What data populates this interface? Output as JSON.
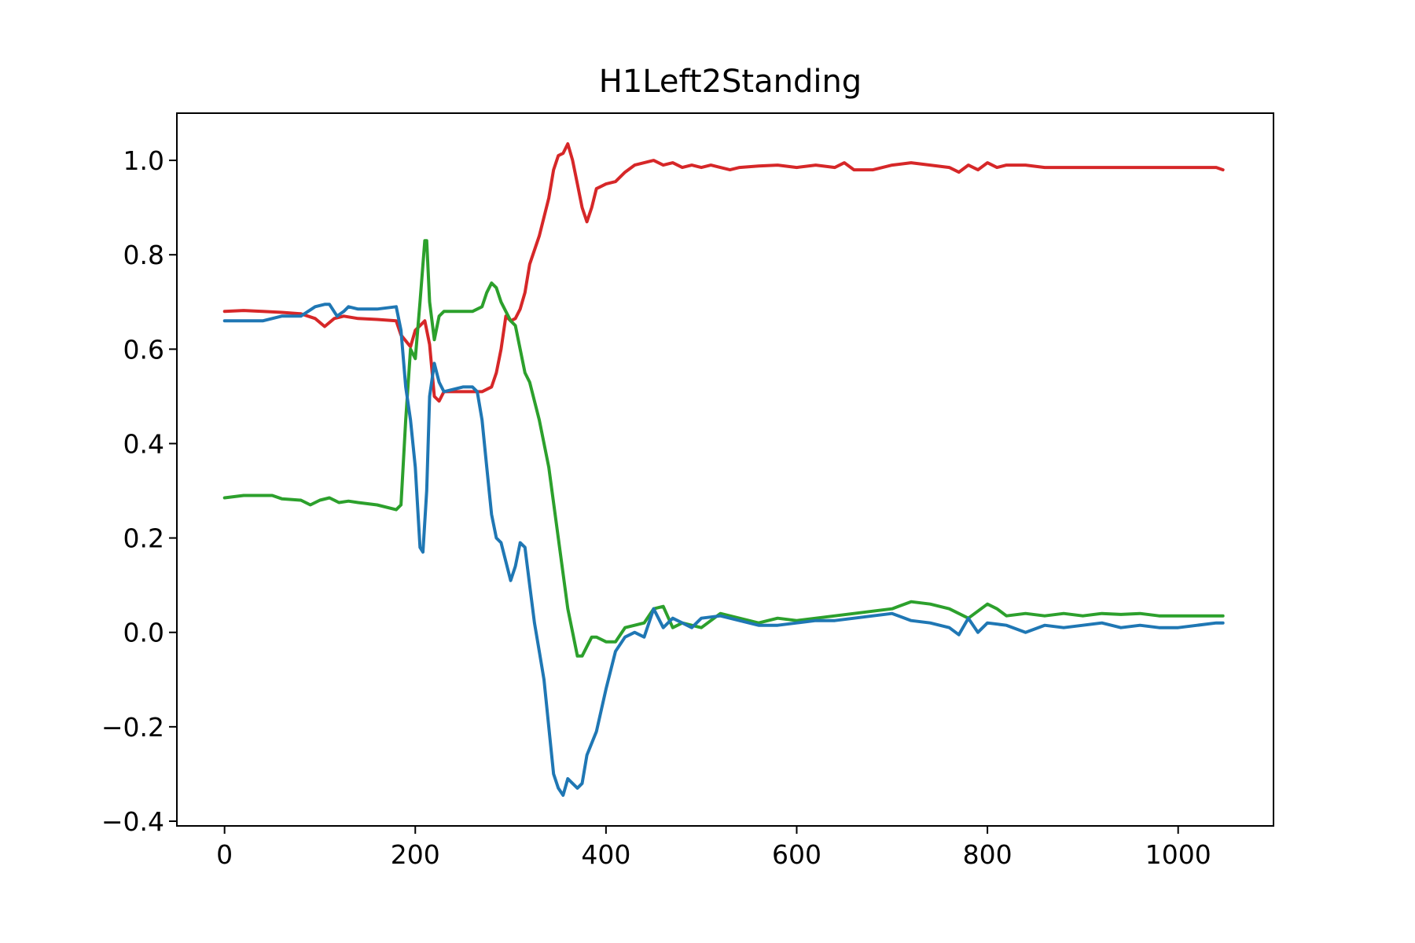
{
  "chart_data": {
    "type": "line",
    "title": "H1Left2Standing",
    "xlabel": "",
    "ylabel": "",
    "xlim": [
      -50,
      1100
    ],
    "ylim": [
      -0.41,
      1.1
    ],
    "grid": false,
    "legend": "none",
    "xticks": [
      0,
      200,
      400,
      600,
      800,
      1000
    ],
    "xtick_labels": [
      "0",
      "200",
      "400",
      "600",
      "800",
      "1000"
    ],
    "yticks": [
      -0.4,
      -0.2,
      0.0,
      0.2,
      0.4,
      0.6,
      0.8,
      1.0
    ],
    "ytick_labels": [
      "−0.4",
      "−0.2",
      "0.0",
      "0.2",
      "0.4",
      "0.6",
      "0.8",
      "1.0"
    ],
    "series": [
      {
        "color": "#d62728",
        "x": [
          0,
          20,
          40,
          60,
          80,
          95,
          105,
          115,
          125,
          140,
          160,
          180,
          185,
          195,
          200,
          210,
          215,
          220,
          225,
          230,
          240,
          250,
          260,
          270,
          275,
          280,
          285,
          290,
          295,
          300,
          305,
          310,
          315,
          320,
          330,
          340,
          345,
          350,
          355,
          360,
          365,
          370,
          375,
          380,
          385,
          390,
          400,
          410,
          420,
          430,
          440,
          450,
          460,
          470,
          480,
          490,
          500,
          510,
          520,
          530,
          540,
          560,
          580,
          600,
          620,
          640,
          650,
          660,
          680,
          700,
          720,
          740,
          760,
          770,
          780,
          790,
          800,
          810,
          820,
          840,
          860,
          880,
          900,
          920,
          940,
          960,
          980,
          1000,
          1020,
          1040,
          1047
        ],
        "y": [
          0.68,
          0.682,
          0.68,
          0.678,
          0.675,
          0.665,
          0.648,
          0.665,
          0.67,
          0.665,
          0.663,
          0.66,
          0.63,
          0.605,
          0.64,
          0.66,
          0.61,
          0.5,
          0.49,
          0.51,
          0.51,
          0.51,
          0.51,
          0.51,
          0.515,
          0.52,
          0.55,
          0.6,
          0.67,
          0.66,
          0.665,
          0.685,
          0.72,
          0.78,
          0.84,
          0.92,
          0.98,
          1.01,
          1.015,
          1.035,
          1.0,
          0.95,
          0.9,
          0.87,
          0.9,
          0.94,
          0.95,
          0.955,
          0.975,
          0.99,
          0.995,
          1.0,
          0.99,
          0.995,
          0.985,
          0.99,
          0.985,
          0.99,
          0.985,
          0.98,
          0.985,
          0.988,
          0.99,
          0.985,
          0.99,
          0.985,
          0.995,
          0.98,
          0.98,
          0.99,
          0.995,
          0.99,
          0.985,
          0.975,
          0.99,
          0.98,
          0.995,
          0.985,
          0.99,
          0.99,
          0.985,
          0.985,
          0.985,
          0.985,
          0.985,
          0.985,
          0.985,
          0.985,
          0.985,
          0.985,
          0.98
        ]
      },
      {
        "color": "#2ca02c",
        "x": [
          0,
          20,
          40,
          50,
          60,
          80,
          90,
          100,
          110,
          120,
          130,
          140,
          160,
          180,
          185,
          190,
          195,
          200,
          205,
          210,
          212,
          215,
          220,
          225,
          230,
          240,
          250,
          260,
          270,
          275,
          280,
          285,
          290,
          295,
          300,
          305,
          310,
          315,
          320,
          330,
          340,
          350,
          360,
          365,
          370,
          375,
          380,
          385,
          390,
          400,
          410,
          420,
          430,
          440,
          450,
          460,
          470,
          480,
          490,
          500,
          520,
          540,
          560,
          580,
          600,
          620,
          640,
          660,
          680,
          700,
          720,
          740,
          760,
          780,
          800,
          810,
          820,
          840,
          860,
          880,
          900,
          920,
          940,
          960,
          980,
          1000,
          1020,
          1040,
          1047
        ],
        "y": [
          0.285,
          0.29,
          0.29,
          0.29,
          0.283,
          0.28,
          0.27,
          0.28,
          0.285,
          0.275,
          0.278,
          0.275,
          0.27,
          0.26,
          0.27,
          0.45,
          0.6,
          0.58,
          0.7,
          0.83,
          0.83,
          0.7,
          0.62,
          0.67,
          0.68,
          0.68,
          0.68,
          0.68,
          0.69,
          0.72,
          0.74,
          0.73,
          0.7,
          0.68,
          0.66,
          0.65,
          0.6,
          0.55,
          0.53,
          0.45,
          0.35,
          0.2,
          0.05,
          0.0,
          -0.05,
          -0.05,
          -0.03,
          -0.01,
          -0.01,
          -0.02,
          -0.02,
          0.01,
          0.015,
          0.02,
          0.05,
          0.055,
          0.01,
          0.02,
          0.015,
          0.01,
          0.04,
          0.03,
          0.02,
          0.03,
          0.025,
          0.03,
          0.035,
          0.04,
          0.045,
          0.05,
          0.065,
          0.06,
          0.05,
          0.03,
          0.06,
          0.05,
          0.035,
          0.04,
          0.035,
          0.04,
          0.035,
          0.04,
          0.038,
          0.04,
          0.035,
          0.035,
          0.035,
          0.035,
          0.035
        ]
      },
      {
        "color": "#1f77b4",
        "x": [
          0,
          20,
          40,
          60,
          80,
          95,
          105,
          110,
          118,
          125,
          130,
          140,
          160,
          180,
          185,
          190,
          195,
          200,
          205,
          208,
          212,
          215,
          220,
          225,
          230,
          240,
          250,
          260,
          265,
          270,
          275,
          280,
          285,
          290,
          295,
          300,
          305,
          310,
          315,
          320,
          325,
          330,
          335,
          340,
          345,
          350,
          355,
          360,
          365,
          370,
          375,
          380,
          390,
          400,
          410,
          420,
          430,
          440,
          450,
          460,
          470,
          480,
          490,
          500,
          520,
          540,
          560,
          580,
          600,
          620,
          640,
          660,
          680,
          700,
          720,
          740,
          760,
          770,
          780,
          790,
          800,
          820,
          840,
          860,
          880,
          900,
          920,
          940,
          960,
          980,
          1000,
          1020,
          1040,
          1047
        ],
        "y": [
          0.66,
          0.66,
          0.66,
          0.67,
          0.67,
          0.69,
          0.695,
          0.695,
          0.67,
          0.68,
          0.69,
          0.685,
          0.685,
          0.69,
          0.64,
          0.52,
          0.45,
          0.35,
          0.18,
          0.17,
          0.3,
          0.5,
          0.57,
          0.53,
          0.51,
          0.515,
          0.52,
          0.52,
          0.51,
          0.45,
          0.35,
          0.25,
          0.2,
          0.19,
          0.15,
          0.11,
          0.14,
          0.19,
          0.18,
          0.1,
          0.02,
          -0.04,
          -0.1,
          -0.2,
          -0.3,
          -0.33,
          -0.345,
          -0.31,
          -0.32,
          -0.33,
          -0.32,
          -0.26,
          -0.21,
          -0.12,
          -0.04,
          -0.01,
          0.0,
          -0.01,
          0.05,
          0.01,
          0.03,
          0.02,
          0.01,
          0.03,
          0.035,
          0.025,
          0.015,
          0.015,
          0.02,
          0.025,
          0.025,
          0.03,
          0.035,
          0.04,
          0.025,
          0.02,
          0.01,
          -0.005,
          0.03,
          0.0,
          0.02,
          0.015,
          0.0,
          0.015,
          0.01,
          0.015,
          0.02,
          0.01,
          0.015,
          0.01,
          0.01,
          0.015,
          0.02,
          0.02
        ]
      }
    ]
  }
}
